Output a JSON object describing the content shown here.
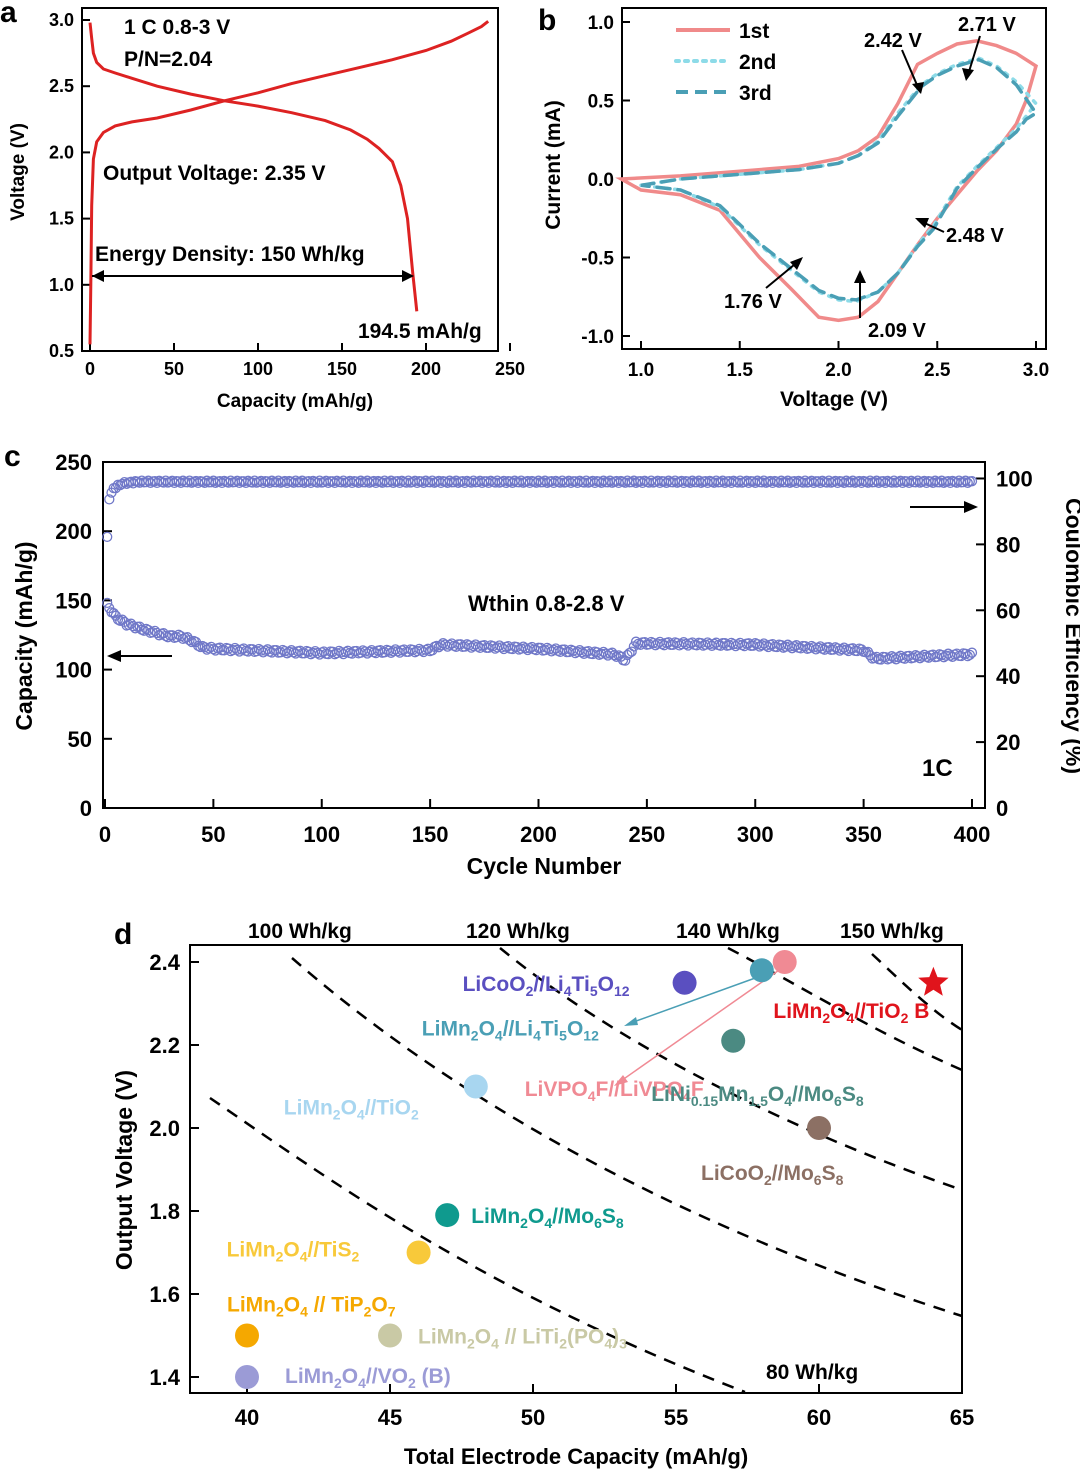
{
  "chart_data": [
    {
      "panel": "a",
      "type": "line",
      "xlabel": "Capacity (mAh/g)",
      "ylabel": "Voltage (V)",
      "xlim": [
        0,
        250
      ],
      "ylim": [
        0.5,
        3.0
      ],
      "xticks": [
        "0",
        "50",
        "100",
        "150",
        "200",
        "250"
      ],
      "yticks": [
        "0.5",
        "1.0",
        "1.5",
        "2.0",
        "2.5",
        "3.0"
      ],
      "condition_line1": "1 C  0.8-3 V",
      "condition_line2": "P/N=2.04",
      "output_voltage_label": "Output Voltage:   2.35 V",
      "energy_density_label": "Energy Density: 150 Wh/kg",
      "capacity_label": "194.5 mAh/g",
      "color": "#dd2222",
      "series": [
        {
          "name": "charge",
          "x": [
            0,
            0.5,
            1,
            2,
            4,
            8,
            15,
            25,
            40,
            60,
            80,
            100,
            120,
            140,
            160,
            180,
            200,
            215,
            225,
            233,
            237
          ],
          "y": [
            0.55,
            1.0,
            1.6,
            1.95,
            2.08,
            2.15,
            2.2,
            2.23,
            2.26,
            2.32,
            2.39,
            2.45,
            2.52,
            2.58,
            2.64,
            2.7,
            2.77,
            2.84,
            2.9,
            2.95,
            2.99
          ]
        },
        {
          "name": "discharge",
          "x": [
            0,
            1,
            2,
            4,
            8,
            15,
            25,
            40,
            60,
            80,
            100,
            120,
            140,
            155,
            165,
            172,
            180,
            185,
            189,
            192,
            194.5
          ],
          "y": [
            2.98,
            2.86,
            2.75,
            2.68,
            2.63,
            2.6,
            2.56,
            2.5,
            2.44,
            2.39,
            2.35,
            2.3,
            2.24,
            2.17,
            2.1,
            2.03,
            1.93,
            1.75,
            1.5,
            1.1,
            0.8
          ]
        }
      ]
    },
    {
      "panel": "b",
      "type": "line",
      "xlabel": "Voltage (V)",
      "ylabel": "Current (mA)",
      "xlim": [
        0.9,
        3.0
      ],
      "ylim": [
        -1.05,
        1.05
      ],
      "xticks": [
        "1.0",
        "1.5",
        "2.0",
        "2.5",
        "3.0"
      ],
      "yticks": [
        "-1.0",
        "-0.5",
        "0.0",
        "0.5",
        "1.0"
      ],
      "legend": [
        "1st",
        "2nd",
        "3rd"
      ],
      "series": [
        {
          "name": "1st",
          "color": "#f08a8a",
          "x": [
            0.9,
            1.2,
            1.5,
            1.8,
            2.0,
            2.1,
            2.2,
            2.3,
            2.4,
            2.5,
            2.6,
            2.7,
            2.8,
            2.9,
            3.0,
            2.95,
            2.9,
            2.8,
            2.7,
            2.6,
            2.5,
            2.4,
            2.3,
            2.2,
            2.1,
            2.0,
            1.9,
            1.76,
            1.6,
            1.4,
            1.2,
            1.0
          ],
          "y": [
            0.0,
            0.02,
            0.05,
            0.08,
            0.13,
            0.18,
            0.27,
            0.48,
            0.73,
            0.8,
            0.86,
            0.88,
            0.85,
            0.8,
            0.72,
            0.5,
            0.35,
            0.18,
            0.05,
            -0.1,
            -0.25,
            -0.42,
            -0.6,
            -0.78,
            -0.88,
            -0.9,
            -0.88,
            -0.7,
            -0.5,
            -0.2,
            -0.1,
            -0.07
          ]
        },
        {
          "name": "2nd",
          "color": "#8ddbe8",
          "x": [
            1.0,
            1.2,
            1.5,
            1.8,
            2.0,
            2.1,
            2.2,
            2.3,
            2.42,
            2.5,
            2.6,
            2.71,
            2.8,
            2.9,
            3.0,
            2.95,
            2.9,
            2.8,
            2.7,
            2.6,
            2.48,
            2.4,
            2.3,
            2.2,
            2.09,
            2.0,
            1.9,
            1.76,
            1.6,
            1.4,
            1.2,
            1.0
          ],
          "y": [
            -0.04,
            0.0,
            0.03,
            0.06,
            0.1,
            0.15,
            0.24,
            0.42,
            0.6,
            0.67,
            0.73,
            0.77,
            0.72,
            0.62,
            0.48,
            0.4,
            0.32,
            0.2,
            0.08,
            -0.05,
            -0.3,
            -0.42,
            -0.6,
            -0.72,
            -0.78,
            -0.77,
            -0.72,
            -0.58,
            -0.42,
            -0.18,
            -0.07,
            -0.04
          ]
        },
        {
          "name": "3rd",
          "color": "#4a9fb5",
          "x": [
            1.0,
            1.2,
            1.5,
            1.8,
            2.0,
            2.1,
            2.2,
            2.3,
            2.42,
            2.5,
            2.6,
            2.71,
            2.8,
            2.9,
            3.0,
            2.95,
            2.9,
            2.8,
            2.7,
            2.6,
            2.48,
            2.4,
            2.3,
            2.2,
            2.09,
            2.0,
            1.9,
            1.76,
            1.6,
            1.4,
            1.2,
            1.0
          ],
          "y": [
            -0.04,
            0.0,
            0.03,
            0.06,
            0.1,
            0.15,
            0.23,
            0.4,
            0.59,
            0.66,
            0.72,
            0.76,
            0.71,
            0.6,
            0.42,
            0.38,
            0.3,
            0.19,
            0.07,
            -0.06,
            -0.32,
            -0.43,
            -0.6,
            -0.72,
            -0.77,
            -0.76,
            -0.71,
            -0.57,
            -0.41,
            -0.17,
            -0.07,
            -0.04
          ]
        }
      ],
      "annotations": [
        "2.42 V",
        "2.71 V",
        "2.48 V",
        "1.76 V",
        "2.09 V"
      ]
    },
    {
      "panel": "c",
      "type": "scatter",
      "xlabel": "Cycle Number",
      "ylabel": "Capacity (mAh/g)",
      "y2label": "Coulombic Efficiency (%)",
      "xlim": [
        0,
        405
      ],
      "ylim": [
        0,
        250
      ],
      "y2lim": [
        0,
        105
      ],
      "xticks": [
        "0",
        "50",
        "100",
        "150",
        "200",
        "250",
        "300",
        "350",
        "400"
      ],
      "yticks": [
        "0",
        "50",
        "100",
        "150",
        "200",
        "250"
      ],
      "y2ticks": [
        "0",
        "20",
        "40",
        "60",
        "80",
        "100"
      ],
      "note": "Wthin 0.8-2.8 V",
      "rate": "1C",
      "color": "#7078c8",
      "capacity_profile": {
        "x": [
          1,
          5,
          10,
          20,
          30,
          35,
          40,
          45,
          50,
          100,
          150,
          155,
          200,
          235,
          240,
          245,
          300,
          350,
          355,
          400
        ],
        "y": [
          147,
          138,
          133,
          128,
          124,
          124,
          121,
          116,
          115,
          112,
          114,
          118,
          115,
          111,
          107,
          119,
          118,
          114,
          108,
          111
        ]
      },
      "efficiency_profile": {
        "x": [
          1,
          2,
          4,
          8,
          15,
          400
        ],
        "y": [
          82,
          94,
          97,
          98.5,
          99,
          99
        ]
      }
    },
    {
      "panel": "d",
      "type": "scatter",
      "xlabel": "Total Electrode Capacity (mAh/g)",
      "ylabel": "Output Voltage (V)",
      "xlim": [
        38,
        65
      ],
      "ylim": [
        1.35,
        2.45
      ],
      "xticks": [
        "40",
        "45",
        "50",
        "55",
        "60",
        "65"
      ],
      "yticks": [
        "1.4",
        "1.6",
        "1.8",
        "2.0",
        "2.2",
        "2.4"
      ],
      "energy_lines": [
        "100 Wh/kg",
        "120 Wh/kg",
        "140 Wh/kg",
        "150 Wh/kg",
        "80 Wh/kg"
      ],
      "points": [
        {
          "label": "LiCoO2//Li4Ti5O12",
          "x": 55.3,
          "y": 2.35,
          "color": "#5a4fc0"
        },
        {
          "label": "LiMn2O4//Li4Ti5O12",
          "x": 58.0,
          "y": 2.38,
          "color": "#4a9fb5"
        },
        {
          "label": "LiVPO4F//LiVPO4F",
          "x": 58.8,
          "y": 2.4,
          "color": "#f08a94"
        },
        {
          "label": "LiNi0.15Mn1.5O4//Mo6S8",
          "x": 57.0,
          "y": 2.21,
          "color": "#4b8a82"
        },
        {
          "label": "LiMn2O4//TiO2",
          "x": 48.0,
          "y": 2.1,
          "color": "#a8d6f0"
        },
        {
          "label": "LiCoO2//Mo6S8",
          "x": 60.0,
          "y": 2.0,
          "color": "#8c7064"
        },
        {
          "label": "LiMn2O4//Mo6S8",
          "x": 47.0,
          "y": 1.79,
          "color": "#0f9a8e"
        },
        {
          "label": "LiMn2O4//TiS2",
          "x": 46.0,
          "y": 1.7,
          "color": "#f8c93a"
        },
        {
          "label": "LiMn2O4 // TiP2O7",
          "x": 40.0,
          "y": 1.5,
          "color": "#f5a800"
        },
        {
          "label": "LiMn2O4 // LiTi2(PO4)3",
          "x": 45.0,
          "y": 1.5,
          "color": "#c9c9a5"
        },
        {
          "label": "LiMn2O4//VO2 (B)",
          "x": 40.0,
          "y": 1.4,
          "color": "#9b9bd6"
        },
        {
          "label": "LiMn2O4//TiO2 B",
          "x": 64.0,
          "y": 2.35,
          "color": "#e0141c",
          "marker": "star"
        }
      ]
    }
  ],
  "panel_letters": [
    "a",
    "b",
    "c",
    "d"
  ]
}
